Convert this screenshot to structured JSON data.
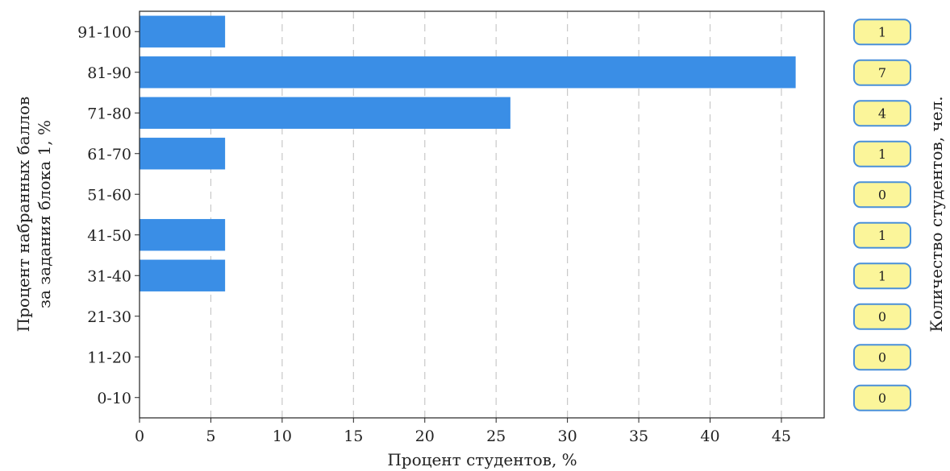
{
  "chart_data": {
    "type": "bar",
    "orientation": "horizontal",
    "categories": [
      "91-100",
      "81-90",
      "71-80",
      "61-70",
      "51-60",
      "41-50",
      "31-40",
      "21-30",
      "11-20",
      "0-10"
    ],
    "values": [
      6,
      46,
      26,
      6,
      0,
      6,
      6,
      0,
      0,
      0
    ],
    "counts": [
      "1",
      "7",
      "4",
      "1",
      "0",
      "1",
      "1",
      "0",
      "0",
      "0"
    ],
    "xlabel": "Процент студентов, %",
    "ylabel_lines": [
      "Процент набранных баллов",
      "за задания блока 1, %"
    ],
    "y2label": "Количество студентов, чел.",
    "xlim": [
      0,
      48
    ],
    "xticks": [
      0,
      5,
      10,
      15,
      20,
      25,
      30,
      35,
      40,
      45
    ],
    "grid": "vertical dashed",
    "colors": {
      "bar": "#3a8ee6",
      "badge_fill": "#fbf59a",
      "badge_stroke": "#4a90d9",
      "grid": "#c8c8c8"
    }
  }
}
